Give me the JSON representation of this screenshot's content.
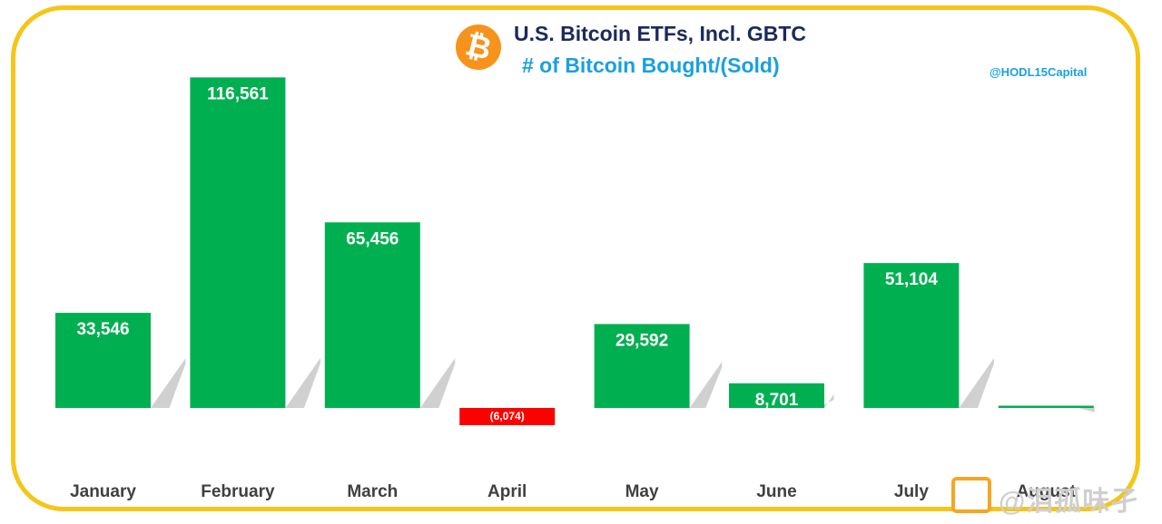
{
  "header": {
    "logo_symbol": "₿",
    "title": "U.S. Bitcoin ETFs, Incl. GBTC",
    "subtitle": "# of Bitcoin Bought/(Sold)",
    "handle": "@HODL15Capital"
  },
  "watermark": {
    "text": "@泪孤味孑"
  },
  "colors": {
    "frame": "#f5c518",
    "bought": "#00b050",
    "sold": "#ff0000",
    "shadow": "#c8c8c8",
    "title": "#1a2a5a",
    "subtitle": "#1aa0e0",
    "bitcoin": "#f7931a"
  },
  "chart_data": {
    "type": "bar",
    "title": "U.S. Bitcoin ETFs, Incl. GBTC",
    "subtitle": "# of Bitcoin Bought/(Sold)",
    "xlabel": "",
    "ylabel": "",
    "ylim": [
      -10000,
      130000
    ],
    "grid": false,
    "categories": [
      "January",
      "February",
      "March",
      "April",
      "May",
      "June",
      "July",
      "August"
    ],
    "values": [
      33546,
      116561,
      65456,
      -6074,
      29592,
      8701,
      51104,
      600
    ],
    "data_labels": [
      "33,546",
      "116,561",
      "65,456",
      "(6,074)",
      "29,592",
      "8,701",
      "51,104",
      ""
    ]
  }
}
